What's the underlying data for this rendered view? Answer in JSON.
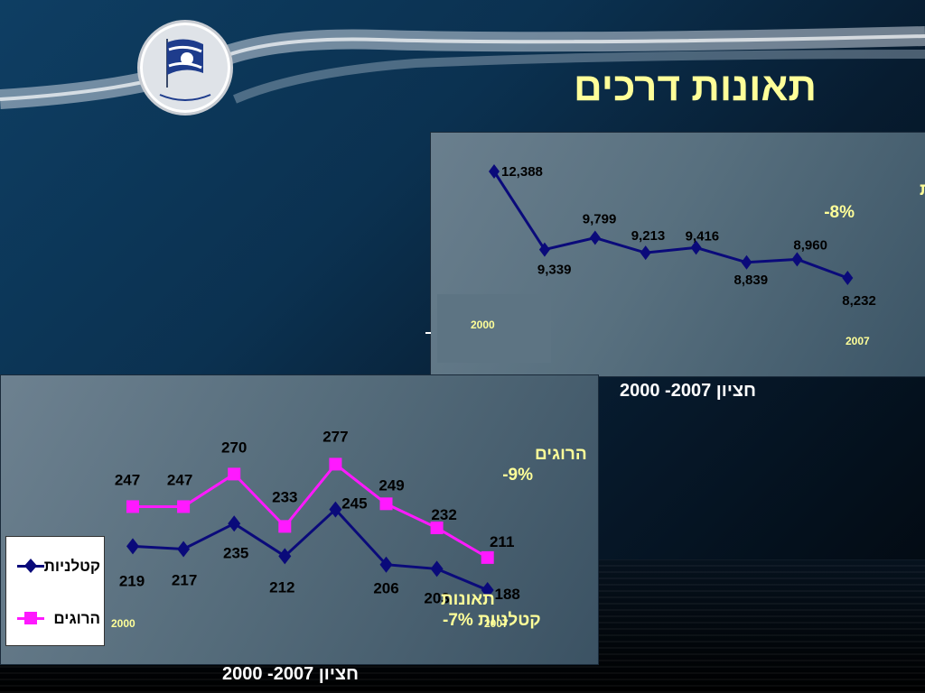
{
  "slide": {
    "title": "תאונות דרכים"
  },
  "top_chart": {
    "annotation_line1": "סה\"כ תאונות",
    "annotation_line2": "-8%",
    "start_year": "2000",
    "end_year": "2007",
    "caption": "חציון 2007- 2000"
  },
  "bottom_chart": {
    "annotation_injured_line1": "הרוגים",
    "annotation_injured_line2": "-9%",
    "annotation_fatal_line1": "תאונות",
    "annotation_fatal_line2": "קטלניות 7%-",
    "start_year": "2000",
    "end_year": "2007",
    "caption": "חציון 2007- 2000",
    "legend": {
      "series1_label": "קטלניות",
      "series2_label": "הרוגים"
    }
  },
  "colors": {
    "title": "#ffff99",
    "annotation": "#ffff99",
    "series_navy": "#0a0a7a",
    "series_magenta": "#ff19ff",
    "labels": "#000000"
  },
  "chart_data": [
    {
      "type": "line",
      "title": "",
      "x": [
        "2000",
        "2001",
        "2002",
        "2003",
        "2004",
        "2005",
        "2006",
        "2007"
      ],
      "series": [
        {
          "values": [
            12388,
            9339,
            9799,
            9213,
            9416,
            8839,
            8960,
            8232
          ]
        }
      ],
      "data_labels": [
        "12,388",
        "9,339",
        "9,799",
        "9,213",
        "9,416",
        "8,839",
        "8,960",
        "8,232"
      ],
      "ylim": [
        7500,
        13000
      ],
      "marker": "diamond",
      "grid": false
    },
    {
      "type": "line",
      "title": "",
      "x": [
        "2000",
        "2001",
        "2002",
        "2003",
        "2004",
        "2005",
        "2006",
        "2007"
      ],
      "series": [
        {
          "name": "קטלניות",
          "values": [
            219,
            217,
            235,
            212,
            245,
            206,
            203,
            188
          ],
          "marker": "diamond"
        },
        {
          "name": "הרוגים",
          "values": [
            247,
            247,
            270,
            233,
            277,
            249,
            232,
            211
          ],
          "marker": "square"
        }
      ],
      "ylim": [
        165,
        320
      ],
      "legend": "bottom-left",
      "grid": false
    }
  ]
}
